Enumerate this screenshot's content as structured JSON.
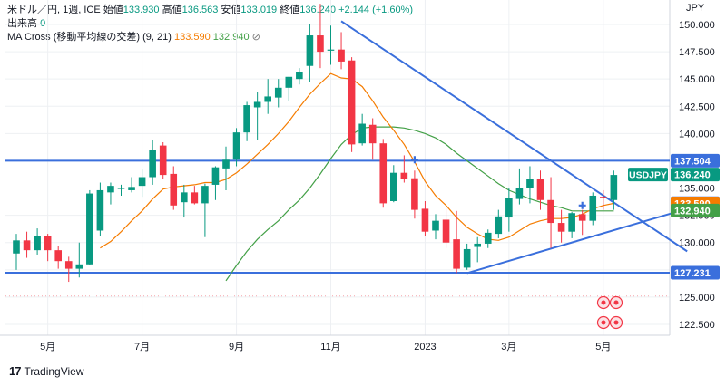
{
  "header": {
    "line1": {
      "symbol": "米ドル／円, 1週, ICE",
      "open_label": "始値",
      "open": "133.930",
      "high_label": "高値",
      "high": "136.563",
      "low_label": "安値",
      "low": "133.019",
      "close_label": "終値",
      "close": "136.240",
      "change": "+2.144 (+1.60%)"
    },
    "line2": {
      "label": "出来高",
      "value": "0"
    },
    "line3": {
      "label": "MA Cross (移動平均線の交差) (9, 21)",
      "ma_fast": "133.590",
      "ma_slow": "132.940"
    }
  },
  "brand": {
    "logo": "17",
    "name": "TradingView"
  },
  "colors": {
    "up": "#089981",
    "down": "#f23645",
    "ma_fast": "#f57c00",
    "ma_slow": "#43a047",
    "trendline": "#3a6fdc",
    "grid": "#eef0f3",
    "axis_text": "#131722"
  },
  "chart_data": {
    "type": "candlestick",
    "currency_label": "JPY",
    "y_ticks": [
      "150.000",
      "147.500",
      "145.000",
      "142.500",
      "140.000",
      "137.500",
      "135.000",
      "132.500",
      "130.000",
      "127.500",
      "125.000",
      "122.500"
    ],
    "x_ticks": [
      {
        "label": "5月",
        "i": 3
      },
      {
        "label": "7月",
        "i": 12
      },
      {
        "label": "9月",
        "i": 21
      },
      {
        "label": "11月",
        "i": 30
      },
      {
        "label": "2023",
        "i": 39
      },
      {
        "label": "3月",
        "i": 47
      },
      {
        "label": "5月",
        "i": 56
      }
    ],
    "candles": [
      {
        "o": 129.0,
        "h": 130.8,
        "l": 127.5,
        "c": 130.2
      },
      {
        "o": 130.2,
        "h": 131.0,
        "l": 128.6,
        "c": 129.3
      },
      {
        "o": 129.3,
        "h": 131.3,
        "l": 128.9,
        "c": 130.6
      },
      {
        "o": 130.6,
        "h": 130.8,
        "l": 128.3,
        "c": 129.3
      },
      {
        "o": 129.3,
        "h": 129.7,
        "l": 127.6,
        "c": 128.3
      },
      {
        "o": 128.3,
        "h": 128.7,
        "l": 126.4,
        "c": 127.6
      },
      {
        "o": 127.6,
        "h": 130.0,
        "l": 126.8,
        "c": 128.0
      },
      {
        "o": 128.0,
        "h": 134.8,
        "l": 127.9,
        "c": 134.5
      },
      {
        "o": 131.1,
        "h": 135.5,
        "l": 130.6,
        "c": 134.8
      },
      {
        "o": 134.6,
        "h": 135.5,
        "l": 133.5,
        "c": 135.2
      },
      {
        "o": 135.0,
        "h": 135.3,
        "l": 134.3,
        "c": 135.0
      },
      {
        "o": 134.8,
        "h": 136.0,
        "l": 134.6,
        "c": 135.1
      },
      {
        "o": 135.2,
        "h": 136.7,
        "l": 134.2,
        "c": 136.0
      },
      {
        "o": 136.0,
        "h": 139.4,
        "l": 135.3,
        "c": 138.5
      },
      {
        "o": 138.9,
        "h": 139.2,
        "l": 135.8,
        "c": 136.2
      },
      {
        "o": 136.3,
        "h": 137.0,
        "l": 133.0,
        "c": 133.4
      },
      {
        "o": 133.7,
        "h": 135.3,
        "l": 132.3,
        "c": 134.6
      },
      {
        "o": 134.6,
        "h": 135.2,
        "l": 133.5,
        "c": 133.6
      },
      {
        "o": 133.6,
        "h": 135.4,
        "l": 130.5,
        "c": 135.2
      },
      {
        "o": 135.3,
        "h": 137.0,
        "l": 133.9,
        "c": 136.9
      },
      {
        "o": 136.8,
        "h": 138.8,
        "l": 134.8,
        "c": 137.6
      },
      {
        "o": 137.6,
        "h": 140.5,
        "l": 137.0,
        "c": 140.1
      },
      {
        "o": 140.1,
        "h": 142.9,
        "l": 139.3,
        "c": 142.6
      },
      {
        "o": 142.4,
        "h": 143.8,
        "l": 139.4,
        "c": 142.9
      },
      {
        "o": 142.9,
        "h": 145.0,
        "l": 141.8,
        "c": 143.4
      },
      {
        "o": 143.3,
        "h": 145.0,
        "l": 142.4,
        "c": 144.2
      },
      {
        "o": 144.2,
        "h": 145.2,
        "l": 143.0,
        "c": 145.2
      },
      {
        "o": 145.0,
        "h": 146.0,
        "l": 144.5,
        "c": 145.6
      },
      {
        "o": 146.2,
        "h": 150.0,
        "l": 144.7,
        "c": 149.0
      },
      {
        "o": 149.0,
        "h": 151.9,
        "l": 146.0,
        "c": 147.5
      },
      {
        "o": 147.6,
        "h": 149.9,
        "l": 146.3,
        "c": 147.7
      },
      {
        "o": 147.7,
        "h": 149.3,
        "l": 145.9,
        "c": 146.6
      },
      {
        "o": 146.7,
        "h": 147.0,
        "l": 138.3,
        "c": 139.0
      },
      {
        "o": 139.1,
        "h": 141.8,
        "l": 138.9,
        "c": 140.9
      },
      {
        "o": 140.8,
        "h": 141.4,
        "l": 137.6,
        "c": 139.1
      },
      {
        "o": 139.1,
        "h": 139.5,
        "l": 133.2,
        "c": 133.6
      },
      {
        "o": 133.8,
        "h": 137.1,
        "l": 133.7,
        "c": 136.4
      },
      {
        "o": 136.4,
        "h": 138.0,
        "l": 135.5,
        "c": 135.8
      },
      {
        "o": 135.9,
        "h": 136.6,
        "l": 132.2,
        "c": 133.0
      },
      {
        "o": 133.1,
        "h": 133.8,
        "l": 130.6,
        "c": 131.0
      },
      {
        "o": 131.1,
        "h": 132.6,
        "l": 130.3,
        "c": 132.0
      },
      {
        "o": 132.1,
        "h": 133.1,
        "l": 129.5,
        "c": 130.0
      },
      {
        "o": 130.3,
        "h": 132.9,
        "l": 127.2,
        "c": 127.6
      },
      {
        "o": 127.7,
        "h": 129.9,
        "l": 127.5,
        "c": 129.4
      },
      {
        "o": 129.6,
        "h": 130.5,
        "l": 128.2,
        "c": 129.9
      },
      {
        "o": 129.9,
        "h": 131.2,
        "l": 129.5,
        "c": 130.9
      },
      {
        "o": 130.8,
        "h": 133.0,
        "l": 130.4,
        "c": 132.4
      },
      {
        "o": 132.3,
        "h": 135.0,
        "l": 131.0,
        "c": 134.1
      },
      {
        "o": 134.0,
        "h": 136.8,
        "l": 133.5,
        "c": 135.0
      },
      {
        "o": 135.0,
        "h": 137.0,
        "l": 133.6,
        "c": 135.8
      },
      {
        "o": 135.8,
        "h": 136.6,
        "l": 133.0,
        "c": 133.9
      },
      {
        "o": 133.9,
        "h": 136.0,
        "l": 129.5,
        "c": 131.8
      },
      {
        "o": 131.8,
        "h": 133.0,
        "l": 130.0,
        "c": 131.0
      },
      {
        "o": 131.0,
        "h": 132.8,
        "l": 130.4,
        "c": 132.7
      },
      {
        "o": 132.6,
        "h": 133.0,
        "l": 130.7,
        "c": 132.0
      },
      {
        "o": 132.0,
        "h": 134.6,
        "l": 131.6,
        "c": 134.3
      },
      {
        "o": 134.2,
        "h": 134.8,
        "l": 133.0,
        "c": 134.1
      },
      {
        "o": 133.9,
        "h": 136.6,
        "l": 133.0,
        "c": 136.2
      }
    ],
    "ma_fast": [
      null,
      null,
      null,
      null,
      null,
      null,
      null,
      null,
      129.5,
      130.1,
      131.0,
      132.0,
      132.9,
      134.0,
      134.9,
      135.1,
      135.2,
      135.3,
      135.5,
      135.5,
      135.8,
      136.4,
      137.2,
      138.1,
      139.0,
      140.0,
      141.1,
      142.4,
      143.6,
      144.6,
      145.5,
      145.1,
      145.0,
      144.3,
      143.0,
      141.5,
      140.3,
      139.0,
      137.4,
      135.6,
      134.3,
      133.4,
      132.3,
      131.4,
      130.8,
      130.3,
      130.2,
      130.5,
      131.1,
      131.7,
      132.0,
      132.2,
      132.2,
      132.3,
      132.6,
      133.1,
      133.4,
      133.6
    ],
    "ma_slow": [
      null,
      null,
      null,
      null,
      null,
      null,
      null,
      null,
      null,
      null,
      null,
      null,
      null,
      null,
      null,
      null,
      null,
      null,
      null,
      null,
      126.5,
      127.9,
      129.2,
      130.3,
      131.2,
      132.0,
      133.0,
      133.9,
      135.0,
      136.3,
      137.7,
      139.0,
      139.9,
      140.5,
      140.6,
      140.6,
      140.6,
      140.5,
      140.3,
      140.0,
      139.6,
      139.0,
      138.2,
      137.5,
      136.8,
      136.1,
      135.4,
      134.8,
      134.4,
      134.0,
      133.7,
      133.4,
      133.2,
      132.9,
      132.9,
      132.9,
      132.9,
      132.9
    ],
    "horizontal_lines": [
      {
        "value": 137.504,
        "label": "137.504"
      },
      {
        "value": 127.231,
        "label": "127.231"
      }
    ],
    "dotted_line": 125.1,
    "trendlines": [
      {
        "from": {
          "i": 31,
          "v": 150.3
        },
        "to": {
          "i": 64,
          "v": 129.2
        }
      },
      {
        "from": {
          "i": 43,
          "v": 127.2
        },
        "to": {
          "i": 64,
          "v": 133.1
        }
      }
    ],
    "price_labels": [
      {
        "value": 137.504,
        "text": "137.504",
        "bg": "#3a6fdc",
        "fg": "#ffffff"
      },
      {
        "value": 136.24,
        "text": "136.240",
        "bg": "#089981",
        "fg": "#ffffff",
        "tag": "USDJPY"
      },
      {
        "value": 133.611,
        "text": "133.611",
        "bg": "#3a6fdc",
        "fg": "#ffffff"
      },
      {
        "value": 133.59,
        "text": "133.590",
        "bg": "#f57c00",
        "fg": "#ffffff"
      },
      {
        "value": 132.94,
        "text": "132.940",
        "bg": "#43a047",
        "fg": "#ffffff"
      },
      {
        "value": 127.231,
        "text": "127.231",
        "bg": "#3a6fdc",
        "fg": "#ffffff"
      }
    ],
    "cross_markers": [
      {
        "i": 38,
        "v": 137.6
      },
      {
        "i": 54,
        "v": 133.4
      }
    ],
    "ylim": [
      121.5,
      152.5
    ],
    "grid": true
  }
}
